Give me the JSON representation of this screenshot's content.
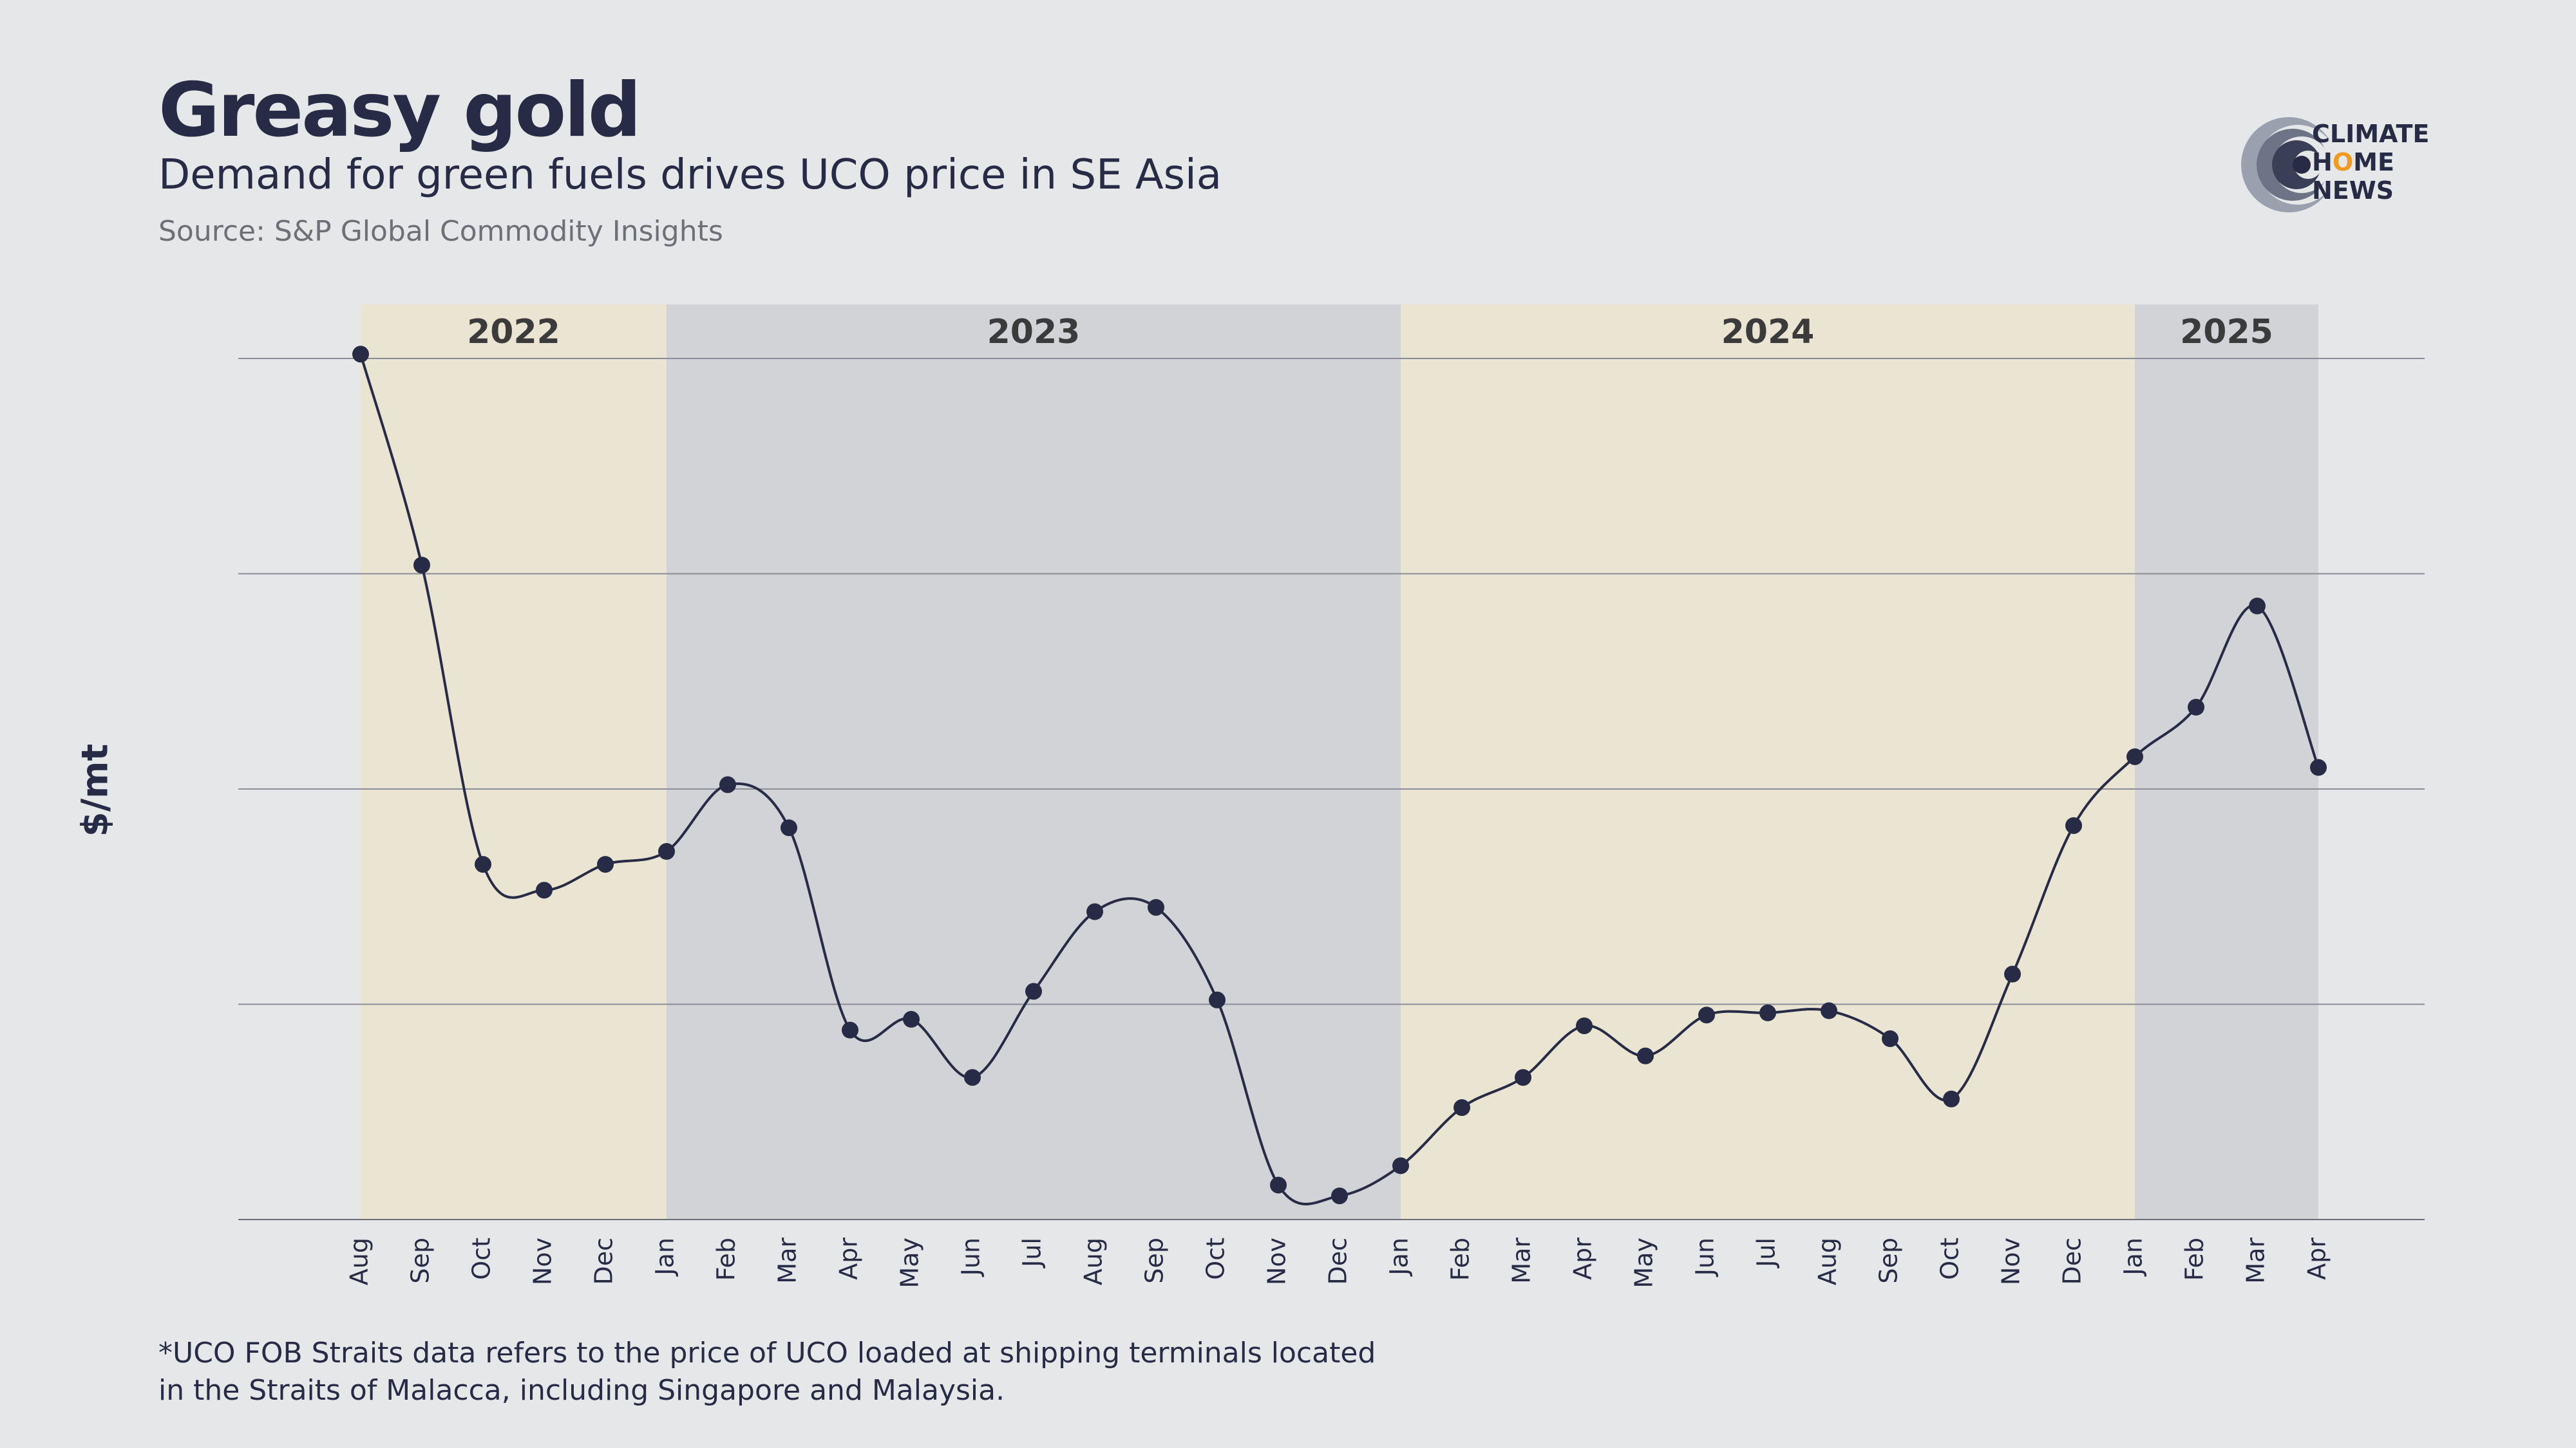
{
  "header": {
    "title": "Greasy gold",
    "subtitle": "Demand for green fuels drives UCO price in SE Asia",
    "source": "Source: S&P Global Commodity Insights"
  },
  "logo": {
    "line1": "CLIMATE",
    "line2_a": "H",
    "line2_o": "O",
    "line2_b": "ME",
    "line3": "NEWS",
    "accent_color": "#f29a1f"
  },
  "footnote": {
    "line1": "*UCO FOB Straits data refers to the price of UCO loaded at shipping terminals located",
    "line2": "in the Straits of Malacca, including Singapore and Malaysia."
  },
  "chart_data": {
    "type": "line",
    "title": "Greasy gold",
    "ylabel": "$/mt",
    "xlabel": "",
    "grid": true,
    "ylim": [
      0,
      4
    ],
    "categories": [
      "Aug",
      "Sep",
      "Oct",
      "Nov",
      "Dec",
      "Jan",
      "Feb",
      "Mar",
      "Apr",
      "May",
      "Jun",
      "Jul",
      "Aug",
      "Sep",
      "Oct",
      "Nov",
      "Dec",
      "Jan",
      "Feb",
      "Mar",
      "Apr",
      "May",
      "Jun",
      "Jul",
      "Aug",
      "Sep",
      "Oct",
      "Nov",
      "Dec",
      "Jan",
      "Feb",
      "Mar",
      "Apr"
    ],
    "year_bands": [
      {
        "label": "2022",
        "start": 0,
        "end": 4,
        "color": "#e9e5d2"
      },
      {
        "label": "2023",
        "start": 5,
        "end": 16,
        "color": "#d2d3d7"
      },
      {
        "label": "2024",
        "start": 17,
        "end": 28,
        "color": "#e9e5d2"
      },
      {
        "label": "2025",
        "start": 29,
        "end": 32,
        "color": "#d2d3d7"
      }
    ],
    "series": [
      {
        "color": "#272b45",
        "values": [
          4.02,
          3.04,
          1.65,
          1.53,
          1.65,
          1.71,
          2.02,
          1.82,
          0.88,
          0.93,
          0.66,
          1.06,
          1.43,
          1.45,
          1.02,
          0.16,
          0.11,
          0.25,
          0.52,
          0.66,
          0.9,
          0.76,
          0.95,
          0.96,
          0.97,
          0.84,
          0.56,
          1.14,
          1.83,
          2.15,
          2.38,
          2.85,
          2.1
        ]
      }
    ]
  }
}
